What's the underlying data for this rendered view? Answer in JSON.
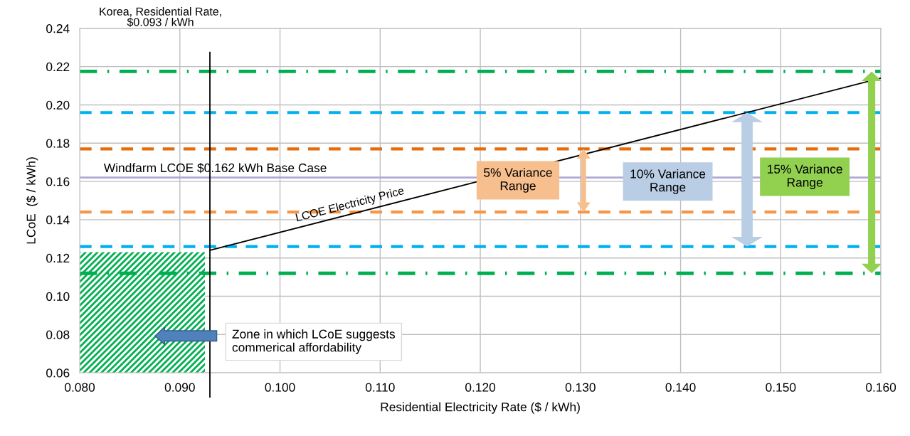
{
  "chart_data": {
    "type": "line",
    "xlabel": "Residential Electricity Rate ($ / kWh)",
    "ylabel": "LCoE  ($ / kWh)",
    "xlim": [
      0.08,
      0.16
    ],
    "xticks": [
      {
        "value": 0.08,
        "label": "0.080"
      },
      {
        "value": 0.09,
        "label": "0.090"
      },
      {
        "value": 0.1,
        "label": "0.100"
      },
      {
        "value": 0.11,
        "label": "0.110"
      },
      {
        "value": 0.12,
        "label": "0.120"
      },
      {
        "value": 0.13,
        "label": "0.130"
      },
      {
        "value": 0.14,
        "label": "0.140"
      },
      {
        "value": 0.15,
        "label": "0.150"
      },
      {
        "value": 0.16,
        "label": "0.160"
      }
    ],
    "ylim": [
      0.06,
      0.24
    ],
    "yticks": [
      {
        "value": 0.06,
        "label": "0.06"
      },
      {
        "value": 0.08,
        "label": "0.08"
      },
      {
        "value": 0.1,
        "label": "0.10"
      },
      {
        "value": 0.12,
        "label": "0.12"
      },
      {
        "value": 0.14,
        "label": "0.14"
      },
      {
        "value": 0.16,
        "label": "0.16"
      },
      {
        "value": 0.18,
        "label": "0.18"
      },
      {
        "value": 0.2,
        "label": "0.20"
      },
      {
        "value": 0.22,
        "label": "0.22"
      },
      {
        "value": 0.24,
        "label": "0.24"
      }
    ],
    "grid": true,
    "series": [
      {
        "type": "area",
        "color": "#00b050",
        "x": [
          0.08,
          0.0925
        ],
        "values": [
          0.123,
          0.123
        ]
      },
      {
        "name": "LCOE Electricity Price",
        "color": "#000000",
        "x": [
          0.093,
          0.16
        ],
        "values": [
          0.124,
          0.214
        ]
      }
    ],
    "ref_lines": [
      {
        "axis": "x",
        "value": 0.093,
        "label": "Korea, Residential Rate,\n$0.093 / kWh",
        "color": "#000000",
        "line_style": "solid"
      },
      {
        "axis": "y",
        "value": 0.162,
        "label": "Windfarm LCOE $0.162 kWh Base Case",
        "color": "#b4a7d6",
        "line_style": "solid"
      },
      {
        "axis": "y",
        "value": 0.2175,
        "color": "#00b050",
        "line_style": "dashdot"
      },
      {
        "axis": "y",
        "value": 0.196,
        "color": "#00b0f0",
        "line_style": "dashed"
      },
      {
        "axis": "y",
        "value": 0.177,
        "color": "#e46c0a",
        "line_style": "dashed"
      },
      {
        "axis": "y",
        "value": 0.144,
        "color": "#f79646",
        "line_style": "dashed"
      },
      {
        "axis": "y",
        "value": 0.126,
        "color": "#00b0f0",
        "line_style": "dashed"
      },
      {
        "axis": "y",
        "value": 0.112,
        "color": "#00b050",
        "line_style": "dashdot"
      }
    ],
    "annotations": [
      "Zone in which LCoE suggests\ncommerical affordability",
      "5% Variance\nRange",
      "10% Variance\nRange",
      "15% Variance\nRange"
    ],
    "legend": false
  }
}
